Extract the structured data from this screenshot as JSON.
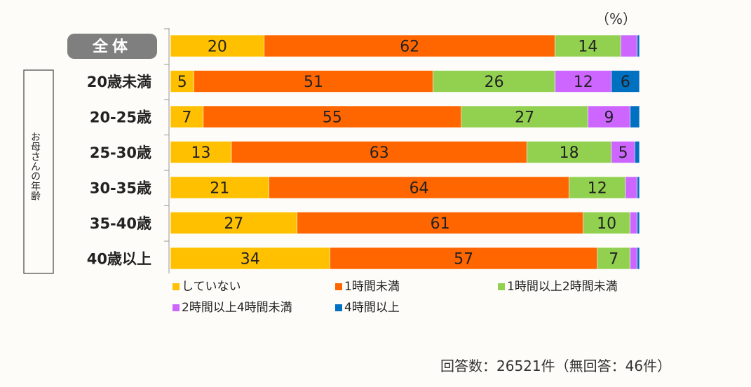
{
  "chart_data": {
    "type": "bar",
    "orientation": "horizontal",
    "stacked": true,
    "unit_label": "（%）",
    "group_label": "お母さんの年齢",
    "categories": [
      "全体",
      "20歳未満",
      "20-25歳",
      "25-30歳",
      "30-35歳",
      "35-40歳",
      "40歳以上"
    ],
    "series": [
      {
        "name": "していない",
        "color": "#ffc000",
        "values": [
          20,
          5,
          7,
          13,
          21,
          27,
          34
        ],
        "labels": [
          "20",
          "5",
          "7",
          "13",
          "21",
          "27",
          "34"
        ]
      },
      {
        "name": "1時間未満",
        "color": "#ff6600",
        "values": [
          62,
          51,
          55,
          63,
          64,
          61,
          57
        ],
        "labels": [
          "62",
          "51",
          "55",
          "63",
          "64",
          "61",
          "57"
        ]
      },
      {
        "name": "1時間以上2時間未満",
        "color": "#92d050",
        "values": [
          14,
          26,
          27,
          18,
          12,
          10,
          7
        ],
        "labels": [
          "14",
          "26",
          "27",
          "18",
          "12",
          "10",
          "7"
        ]
      },
      {
        "name": "2時間以上4時間未満",
        "color": "#cc66ff",
        "values": [
          3.5,
          12,
          9,
          5,
          2.5,
          1.5,
          1.5
        ],
        "labels": [
          "",
          "12",
          "9",
          "5",
          "",
          "",
          ""
        ]
      },
      {
        "name": "4時間以上",
        "color": "#0070c0",
        "values": [
          0.5,
          6,
          2,
          1,
          0.5,
          0.5,
          0.5
        ],
        "labels": [
          "",
          "6",
          "",
          "",
          "",
          "",
          ""
        ]
      }
    ],
    "xlim": [
      0,
      100
    ]
  },
  "footer": "回答数：26521件（無回答：46件）"
}
